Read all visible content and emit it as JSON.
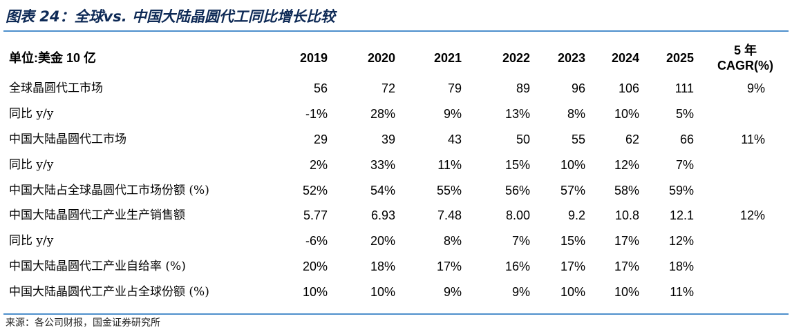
{
  "title": "图表 24：全球vs. 中国大陆晶圆代工同比增长比较",
  "source": "来源：各公司财报，国金证券研究所",
  "table": {
    "unit_label": "单位:美金 10 亿",
    "years": [
      "2019",
      "2020",
      "2021",
      "2022",
      "2023",
      "2024",
      "2025"
    ],
    "cagr_header_line1": "5 年",
    "cagr_header_line2": "CAGR(%)",
    "rows": [
      {
        "label": "全球晶圆代工市场",
        "values": [
          "56",
          "72",
          "79",
          "89",
          "96",
          "106",
          "111"
        ],
        "cagr": "9%"
      },
      {
        "label": "同比 y/y",
        "values": [
          "-1%",
          "28%",
          "9%",
          "13%",
          "8%",
          "10%",
          "5%"
        ],
        "cagr": ""
      },
      {
        "label": "中国大陆晶圆代工市场",
        "values": [
          "29",
          "39",
          "43",
          "50",
          "55",
          "62",
          "66"
        ],
        "cagr": "11%"
      },
      {
        "label": "同比 y/y",
        "values": [
          "2%",
          "33%",
          "11%",
          "15%",
          "10%",
          "12%",
          "7%"
        ],
        "cagr": ""
      },
      {
        "label": "中国大陆占全球晶圆代工市场份额 (%)",
        "values": [
          "52%",
          "54%",
          "55%",
          "56%",
          "57%",
          "58%",
          "59%"
        ],
        "cagr": ""
      },
      {
        "label": "中国大陆晶圆代工产业生产销售额",
        "values": [
          "5.77",
          "6.93",
          "7.48",
          "8.00",
          "9.2",
          "10.8",
          "12.1"
        ],
        "cagr": "12%"
      },
      {
        "label": "同比 y/y",
        "values": [
          "-6%",
          "20%",
          "8%",
          "7%",
          "15%",
          "17%",
          "12%"
        ],
        "cagr": ""
      },
      {
        "label": "中国大陆晶圆代工产业自给率 (%)",
        "values": [
          "20%",
          "18%",
          "17%",
          "16%",
          "17%",
          "17%",
          "18%"
        ],
        "cagr": ""
      },
      {
        "label": "中国大陆晶圆代工产业占全球份额 (%)",
        "values": [
          "10%",
          "10%",
          "9%",
          "9%",
          "10%",
          "10%",
          "11%"
        ],
        "cagr": ""
      }
    ]
  }
}
